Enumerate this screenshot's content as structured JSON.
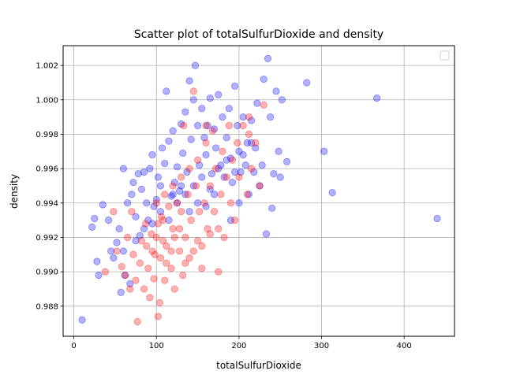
{
  "chart_data": {
    "type": "scatter",
    "title": "Scatter plot of totalSulfurDioxide and density",
    "xlabel": "totalSulfurDioxide",
    "ylabel": "density",
    "xlim": [
      -13,
      461
    ],
    "ylim": [
      0.98625,
      1.00315
    ],
    "xticks": [
      0,
      100,
      200,
      300,
      400
    ],
    "xtick_labels": [
      "0",
      "100",
      "200",
      "300",
      "400"
    ],
    "yticks": [
      0.988,
      0.99,
      0.992,
      0.994,
      0.996,
      0.998,
      1.0,
      1.002
    ],
    "ytick_labels": [
      "0.988",
      "0.990",
      "0.992",
      "0.994",
      "0.996",
      "0.998",
      "1.000",
      "1.002"
    ],
    "grid": true,
    "legend": {
      "location": "top-right",
      "entries": []
    },
    "series": [
      {
        "name": "blue",
        "color": "#0000ff",
        "alpha": 0.3,
        "points": [
          [
            10,
            0.9872
          ],
          [
            22,
            0.9926
          ],
          [
            25,
            0.9931
          ],
          [
            28,
            0.9906
          ],
          [
            30,
            0.9898
          ],
          [
            35,
            0.9939
          ],
          [
            42,
            0.993
          ],
          [
            45,
            0.9912
          ],
          [
            48,
            0.9908
          ],
          [
            52,
            0.9917
          ],
          [
            55,
            0.9925
          ],
          [
            57,
            0.9888
          ],
          [
            60,
            0.996
          ],
          [
            62,
            0.9898
          ],
          [
            65,
            0.994
          ],
          [
            68,
            0.9893
          ],
          [
            70,
            0.9945
          ],
          [
            72,
            0.9952
          ],
          [
            75,
            0.9932
          ],
          [
            78,
            0.9957
          ],
          [
            80,
            0.9921
          ],
          [
            82,
            0.9948
          ],
          [
            85,
            0.9958
          ],
          [
            88,
            0.994
          ],
          [
            90,
            0.993
          ],
          [
            92,
            0.996
          ],
          [
            95,
            0.9968
          ],
          [
            97,
            0.9938
          ],
          [
            100,
            0.9942
          ],
          [
            102,
            0.9955
          ],
          [
            105,
            0.995
          ],
          [
            107,
            0.9972
          ],
          [
            110,
            0.9963
          ],
          [
            112,
            1.0005
          ],
          [
            115,
            0.9976
          ],
          [
            118,
            0.9944
          ],
          [
            120,
            0.9982
          ],
          [
            122,
            0.9952
          ],
          [
            125,
            0.9961
          ],
          [
            128,
            0.9947
          ],
          [
            130,
            0.9986
          ],
          [
            132,
            0.9969
          ],
          [
            135,
            0.9993
          ],
          [
            137,
            0.9958
          ],
          [
            140,
            1.0011
          ],
          [
            142,
            0.9977
          ],
          [
            145,
            1.0
          ],
          [
            147,
            1.002
          ],
          [
            150,
            0.9985
          ],
          [
            152,
            0.9962
          ],
          [
            155,
            0.9995
          ],
          [
            158,
            0.9978
          ],
          [
            160,
            0.9968
          ],
          [
            162,
            0.9985
          ],
          [
            165,
            1.0001
          ],
          [
            167,
            0.9957
          ],
          [
            170,
            0.9983
          ],
          [
            172,
            0.9972
          ],
          [
            175,
            1.0003
          ],
          [
            178,
            0.9962
          ],
          [
            180,
            0.999
          ],
          [
            182,
            0.9955
          ],
          [
            185,
            0.9978
          ],
          [
            188,
            0.9995
          ],
          [
            190,
            0.9966
          ],
          [
            192,
            0.9952
          ],
          [
            195,
            1.0008
          ],
          [
            198,
            0.9985
          ],
          [
            200,
            0.997
          ],
          [
            202,
            0.9958
          ],
          [
            205,
            0.999
          ],
          [
            208,
            0.9962
          ],
          [
            210,
            0.9975
          ],
          [
            212,
            0.9945
          ],
          [
            215,
            0.9988
          ],
          [
            218,
            0.9958
          ],
          [
            220,
            0.9972
          ],
          [
            222,
            0.9998
          ],
          [
            225,
            0.995
          ],
          [
            228,
            0.9962
          ],
          [
            230,
            1.0012
          ],
          [
            233,
            0.9922
          ],
          [
            235,
            1.0024
          ],
          [
            238,
            0.999
          ],
          [
            240,
            0.9937
          ],
          [
            242,
            0.9957
          ],
          [
            245,
            1.0005
          ],
          [
            248,
            0.997
          ],
          [
            250,
            0.9955
          ],
          [
            252,
            1.0
          ],
          [
            258,
            0.9964
          ],
          [
            282,
            1.001
          ],
          [
            303,
            0.997
          ],
          [
            313,
            0.9946
          ],
          [
            367,
            1.0001
          ],
          [
            440,
            0.9931
          ],
          [
            60,
            0.9912
          ],
          [
            75,
            0.9918
          ],
          [
            85,
            0.9925
          ],
          [
            95,
            0.9928
          ],
          [
            105,
            0.9935
          ],
          [
            115,
            0.993
          ],
          [
            125,
            0.994
          ],
          [
            135,
            0.9945
          ],
          [
            145,
            0.995
          ],
          [
            155,
            0.9955
          ],
          [
            165,
            0.9948
          ],
          [
            175,
            0.996
          ],
          [
            185,
            0.9965
          ],
          [
            195,
            0.9958
          ],
          [
            205,
            0.9968
          ],
          [
            215,
            0.9975
          ],
          [
            190,
            0.993
          ],
          [
            200,
            0.994
          ],
          [
            170,
            0.9945
          ],
          [
            160,
            0.9938
          ],
          [
            150,
            0.994
          ],
          [
            140,
            0.9935
          ],
          [
            130,
            0.995
          ],
          [
            120,
            0.9945
          ]
        ]
      },
      {
        "name": "red",
        "color": "#ff0000",
        "alpha": 0.3,
        "points": [
          [
            38,
            0.99
          ],
          [
            48,
            0.9935
          ],
          [
            52,
            0.9912
          ],
          [
            58,
            0.9903
          ],
          [
            62,
            0.9898
          ],
          [
            65,
            0.992
          ],
          [
            68,
            0.989
          ],
          [
            70,
            0.9935
          ],
          [
            72,
            0.991
          ],
          [
            75,
            0.9895
          ],
          [
            77,
            0.9871
          ],
          [
            80,
            0.9905
          ],
          [
            82,
            0.9918
          ],
          [
            85,
            0.989
          ],
          [
            87,
            0.9928
          ],
          [
            90,
            0.9902
          ],
          [
            92,
            0.9885
          ],
          [
            95,
            0.9912
          ],
          [
            97,
            0.9896
          ],
          [
            100,
            0.992
          ],
          [
            102,
            0.9874
          ],
          [
            104,
            0.9882
          ],
          [
            105,
            0.9908
          ],
          [
            108,
            0.993
          ],
          [
            110,
            0.9895
          ],
          [
            112,
            0.9915
          ],
          [
            115,
            0.9938
          ],
          [
            118,
            0.9902
          ],
          [
            120,
            0.9925
          ],
          [
            122,
            0.989
          ],
          [
            125,
            0.994
          ],
          [
            128,
            0.9912
          ],
          [
            130,
            0.9935
          ],
          [
            132,
            0.9898
          ],
          [
            135,
            0.992
          ],
          [
            138,
            0.9945
          ],
          [
            140,
            0.9908
          ],
          [
            142,
            0.993
          ],
          [
            145,
            1.0005
          ],
          [
            148,
            0.995
          ],
          [
            150,
            0.9918
          ],
          [
            152,
            0.9935
          ],
          [
            155,
            0.9902
          ],
          [
            158,
            0.994
          ],
          [
            160,
            0.9975
          ],
          [
            162,
            0.9925
          ],
          [
            165,
            0.995
          ],
          [
            168,
            0.9982
          ],
          [
            170,
            0.9935
          ],
          [
            172,
            0.996
          ],
          [
            175,
            0.99
          ],
          [
            178,
            0.9945
          ],
          [
            180,
            0.997
          ],
          [
            182,
            0.992
          ],
          [
            185,
            0.9955
          ],
          [
            188,
            0.9985
          ],
          [
            190,
            0.994
          ],
          [
            192,
            0.9965
          ],
          [
            195,
            0.993
          ],
          [
            198,
            0.9975
          ],
          [
            200,
            0.9955
          ],
          [
            205,
            0.9985
          ],
          [
            210,
            0.9945
          ],
          [
            212,
            0.999
          ],
          [
            215,
            0.996
          ],
          [
            220,
            0.9975
          ],
          [
            225,
            0.995
          ],
          [
            230,
            0.9997
          ],
          [
            108,
            0.9918
          ],
          [
            112,
            0.9905
          ],
          [
            118,
            0.9912
          ],
          [
            122,
            0.992
          ],
          [
            128,
            0.9925
          ],
          [
            98,
            0.991
          ],
          [
            102,
            0.9928
          ],
          [
            106,
            0.9932
          ],
          [
            94,
            0.9922
          ],
          [
            88,
            0.9915
          ],
          [
            135,
            0.9905
          ],
          [
            145,
            0.9912
          ],
          [
            155,
            0.9915
          ],
          [
            165,
            0.9922
          ],
          [
            175,
            0.9925
          ],
          [
            140,
            0.996
          ],
          [
            150,
            0.9965
          ],
          [
            130,
            0.9955
          ],
          [
            120,
            0.995
          ],
          [
            110,
            0.9945
          ],
          [
            100,
            0.994
          ],
          [
            133,
            0.9985
          ],
          [
            160,
            0.9985
          ],
          [
            212,
            0.998
          ]
        ]
      }
    ]
  }
}
